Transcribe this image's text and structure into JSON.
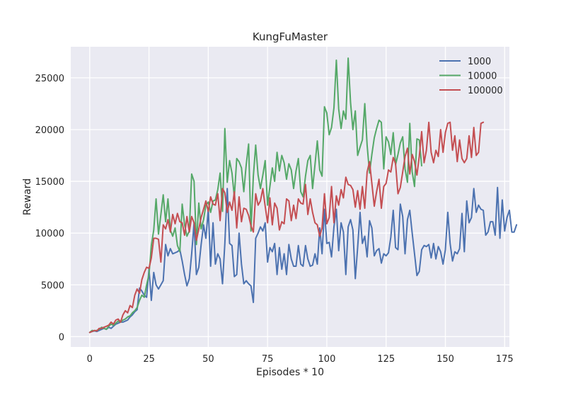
{
  "chart_data": {
    "type": "line",
    "title": "KungFuMaster",
    "xlabel": "Episodes * 10",
    "ylabel": "Reward",
    "xlim": [
      -8,
      177
    ],
    "ylim": [
      -1000,
      28000
    ],
    "xticks": [
      0,
      25,
      50,
      75,
      100,
      125,
      150,
      175
    ],
    "yticks": [
      0,
      5000,
      10000,
      15000,
      20000,
      25000
    ],
    "grid": true,
    "legend_position": "top-right",
    "series": [
      {
        "name": "1000",
        "color": "#4c72b0",
        "x_start": 0,
        "values": [
          400,
          500,
          550,
          500,
          600,
          700,
          800,
          700,
          900,
          800,
          1000,
          1200,
          1300,
          1400,
          1400,
          1500,
          1600,
          1900,
          2100,
          2400,
          2600,
          4700,
          4400,
          4000,
          3800,
          6500,
          3500,
          6200,
          5000,
          4600,
          5000,
          5400,
          8900,
          7800,
          8500,
          8000,
          8100,
          8200,
          8400,
          7300,
          6000,
          4900,
          5600,
          8000,
          11000,
          6000,
          6700,
          8900,
          10800,
          9500,
          12300,
          6800,
          11000,
          7000,
          8000,
          7500,
          5100,
          9000,
          14300,
          9000,
          8800,
          5800,
          6000,
          10000,
          7000,
          5100,
          5400,
          5100,
          4900,
          3300,
          9500,
          10000,
          10600,
          10200,
          11000,
          7200,
          8600,
          8200,
          9000,
          6000,
          8600,
          6500,
          8000,
          6000,
          8900,
          7500,
          6800,
          6800,
          8800,
          7000,
          6800,
          8800,
          7500,
          6800,
          6900,
          8000,
          7000,
          10500,
          8000,
          12300,
          9000,
          9100,
          7700,
          10600,
          12300,
          8300,
          11000,
          10100,
          6000,
          10600,
          11300,
          10300,
          5600,
          8600,
          12000,
          9000,
          9700,
          7700,
          11200,
          10500,
          7800,
          8300,
          8500,
          7100,
          8000,
          7800,
          8100,
          9600,
          12200,
          8600,
          8400,
          12800,
          11600,
          8000,
          11300,
          12200,
          10000,
          8000,
          5900,
          6300,
          8400,
          8800,
          8700,
          8900,
          7600,
          9000,
          7500,
          8700,
          8200,
          7000,
          8400,
          12000,
          9000,
          7300,
          8200,
          8000,
          8500,
          11900,
          8200,
          13100,
          11000,
          11500,
          14300,
          12000,
          12700,
          12300,
          12200,
          9800,
          10100,
          11100,
          11100,
          9800,
          14400,
          9500,
          13200,
          10200,
          11500,
          12200,
          10100,
          10100,
          10800
        ]
      },
      {
        "name": "10000",
        "color": "#55a868",
        "x_start": 0,
        "values": [
          400,
          600,
          550,
          600,
          700,
          900,
          800,
          700,
          1000,
          1200,
          1100,
          1300,
          1500,
          1400,
          1600,
          1700,
          1900,
          2000,
          2300,
          2500,
          2800,
          3500,
          4000,
          3800,
          5000,
          6000,
          8800,
          10300,
          13300,
          9900,
          11800,
          13700,
          11100,
          13300,
          10300,
          9700,
          10500,
          8800,
          8200,
          12800,
          10800,
          9700,
          10200,
          15700,
          15000,
          8900,
          12900,
          10400,
          11300,
          12700,
          13000,
          12000,
          13100,
          13200,
          14200,
          15800,
          12100,
          20100,
          14900,
          17000,
          15800,
          13500,
          17200,
          16900,
          16300,
          14000,
          16600,
          18600,
          10200,
          15500,
          18500,
          15600,
          14300,
          15600,
          17000,
          12700,
          14500,
          16300,
          15000,
          17800,
          16000,
          17500,
          16800,
          15200,
          16700,
          16100,
          14300,
          16000,
          17200,
          14000,
          13500,
          15500,
          17000,
          17500,
          14300,
          16600,
          18900,
          16100,
          15500,
          22200,
          21600,
          19500,
          20200,
          22100,
          26700,
          22000,
          20100,
          21800,
          21000,
          26900,
          22600,
          20000,
          21800,
          17500,
          18300,
          19000,
          22500,
          18500,
          15800,
          17600,
          19200,
          20100,
          20900,
          20700,
          16200,
          19300,
          18800,
          17600,
          19700,
          16600,
          17600,
          18700,
          19300,
          16200,
          14900,
          20600,
          15900,
          14500,
          19100,
          19000,
          16500
        ]
      },
      {
        "name": "100000",
        "color": "#c44e52",
        "x_start": 0,
        "values": [
          400,
          500,
          600,
          550,
          800,
          800,
          900,
          1000,
          1100,
          1400,
          1200,
          1600,
          1700,
          1400,
          2100,
          2500,
          2300,
          3000,
          2800,
          4000,
          4600,
          4200,
          5500,
          6200,
          6700,
          6600,
          7600,
          9500,
          9500,
          9400,
          7200,
          10800,
          10400,
          11300,
          10100,
          11800,
          10900,
          11900,
          11100,
          11000,
          9800,
          11600,
          10100,
          11600,
          11000,
          9300,
          10400,
          11500,
          12300,
          13100,
          12100,
          13500,
          12800,
          12700,
          13800,
          11200,
          14300,
          13900,
          12000,
          13000,
          12200,
          14000,
          10500,
          13500,
          11100,
          12400,
          12300,
          11700,
          10700,
          10100,
          13800,
          12700,
          13100,
          14300,
          12600,
          11000,
          13400,
          10800,
          12900,
          12400,
          10300,
          11100,
          10900,
          13300,
          13100,
          11200,
          12700,
          11400,
          13300,
          12900,
          12800,
          14700,
          11800,
          13300,
          12000,
          11000,
          10800,
          9700,
          10500,
          13800,
          10900,
          11500,
          14500,
          11000,
          13600,
          12700,
          14200,
          13400,
          15400,
          14700,
          14600,
          14200,
          12500,
          14100,
          12300,
          14500,
          12400,
          15900,
          16900,
          14800,
          12600,
          14000,
          15200,
          12400,
          14500,
          14800,
          16100,
          15900,
          17300,
          16700,
          13800,
          14400,
          15900,
          17400,
          18200,
          15700,
          17600,
          16900,
          15600,
          17400,
          19800,
          16800,
          18000,
          20700,
          17800,
          16800,
          18000,
          17400,
          20000,
          17800,
          19700,
          20600,
          20700,
          18000,
          19400,
          16900,
          19000,
          17200,
          16800,
          17200,
          19400,
          17300,
          20200,
          17500,
          17800,
          20600,
          20700
        ]
      }
    ]
  }
}
